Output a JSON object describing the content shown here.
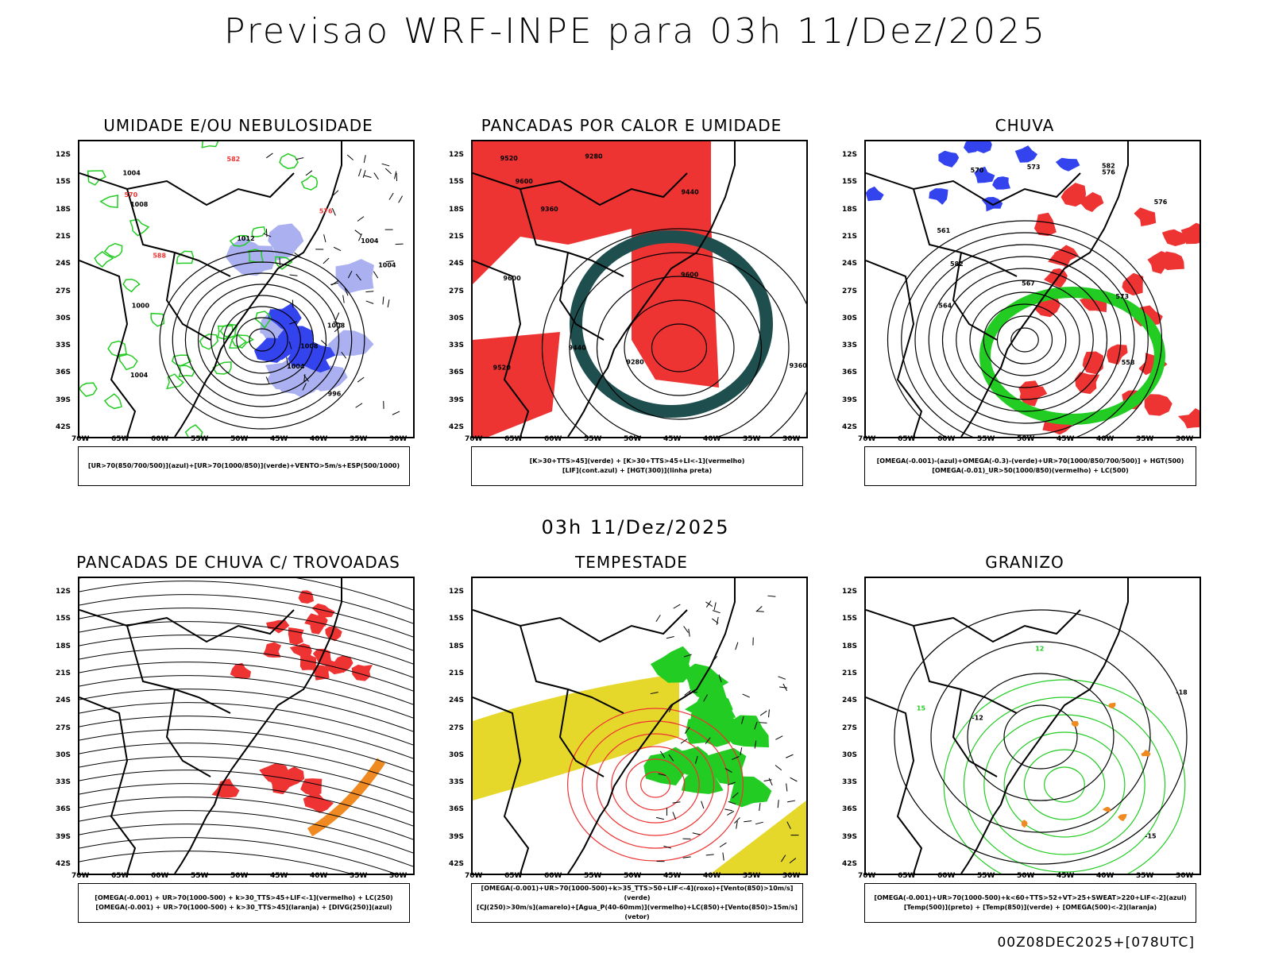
{
  "title": "Previsao WRF-INPE  para 03h 11/Dez/2025",
  "mid_date": "03h 11/Dez/2025",
  "footer": "00Z08DEC2025+[078UTC]",
  "lat_labels": [
    "12S",
    "15S",
    "18S",
    "21S",
    "24S",
    "27S",
    "30S",
    "33S",
    "36S",
    "39S",
    "42S"
  ],
  "lon_labels": [
    "70W",
    "65W",
    "60W",
    "55W",
    "50W",
    "45W",
    "40W",
    "35W",
    "30W"
  ],
  "colors": {
    "blue": "#3344ee",
    "light_blue": "#aab0f0",
    "green": "#22cc22",
    "red": "#ee3333",
    "dark_teal": "#1f4e4e",
    "yellow": "#e6d82a",
    "orange": "#ef8a22"
  },
  "panels": [
    {
      "title": "UMIDADE E/OU NEBULOSIDADE",
      "legend": [
        "[UR>70(850/700/500)](azul)+[UR>70(1000/850)](verde)+VENTO>5m/s+ESP(500/1000)"
      ],
      "contour_labels": [
        "1012",
        "1008",
        "1004",
        "1004",
        "1004",
        "1004",
        "1008",
        "1000",
        "996",
        "1004",
        "1008",
        "570",
        "576",
        "582",
        "588"
      ]
    },
    {
      "title": "PANCADAS POR CALOR E UMIDADE",
      "legend": [
        "[K>30+TTS>45](verde) + [K>30+TTS>45+LI<-1](vermelho)",
        "[LIF](cont.azul) + [HGT(300)](linha preta)"
      ],
      "contour_labels": [
        "9600",
        "9600",
        "9600",
        "9520",
        "9440",
        "9520",
        "9440",
        "9360",
        "9280",
        "9360",
        "9280"
      ]
    },
    {
      "title": "CHUVA",
      "legend": [
        "[OMEGA(-0.001)-(azul)+OMEGA(-0.3)-(verde)+UR>70(1000/850/700/500)] + HGT(500)",
        "[OMEGA(-0.01)_UR>50(1000/850)(vermelho) + LC(500)"
      ],
      "contour_labels": [
        "582",
        "576",
        "573",
        "570",
        "567",
        "564",
        "561",
        "558",
        "573",
        "576",
        "582"
      ]
    },
    {
      "title": "PANCADAS DE CHUVA C/ TROVOADAS",
      "legend": [
        "[OMEGA(-0.001) + UR>70(1000-500) + k>30_TTS>45+LIF<-1](vermelho) + LC(250)",
        "[OMEGA(-0.001) + UR>70(1000-500) + k>30_TTS>45](laranja) + [DIVG(250)](azul)"
      ],
      "contour_labels": []
    },
    {
      "title": "TEMPESTADE",
      "legend": [
        "[OMEGA(-0.001)+UR>70(1000-500)+k>35_TTS>50+LIF<-4](roxo)+[Vento(850)>10m/s](verde)",
        "[CJ(250)>30m/s](amarelo)+[Agua_P(40-60mm)](vermelho)+LC(850)+[Vento(850)>15m/s](vetor)"
      ],
      "contour_labels": []
    },
    {
      "title": "GRANIZO",
      "legend": [
        "[OMEGA(-0.001)+UR>70(1000-500)+k<60+TTS>52+VT>25+SWEAT>220+LIF<-2](azul)",
        "[Temp(500)](preto) + [Temp(850)](verde) + [OMEGA(500)<-2](laranja)"
      ],
      "contour_labels": [
        "-12",
        "-15",
        "-18",
        "12",
        "15"
      ]
    }
  ]
}
